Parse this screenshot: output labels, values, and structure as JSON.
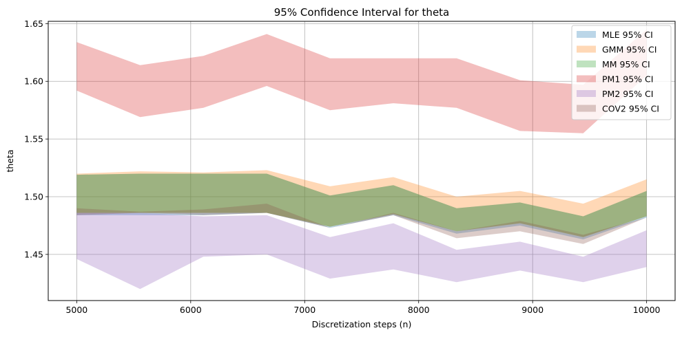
{
  "chart_data": {
    "type": "area",
    "title": "95% Confidence Interval for theta",
    "xlabel": "Discretization steps (n)",
    "ylabel": "theta",
    "xlim": [
      4750,
      10250
    ],
    "ylim": [
      1.41,
      1.652
    ],
    "xticks": [
      5000,
      6000,
      7000,
      8000,
      9000,
      10000
    ],
    "xtick_labels": [
      "5000",
      "6000",
      "7000",
      "8000",
      "9000",
      "10000"
    ],
    "yticks": [
      1.45,
      1.5,
      1.55,
      1.6,
      1.65
    ],
    "ytick_labels": [
      "1.45",
      "1.50",
      "1.55",
      "1.60",
      "1.65"
    ],
    "grid": true,
    "legend_position": "top-right",
    "x": [
      5000,
      5556,
      6111,
      6667,
      7222,
      7778,
      8333,
      8889,
      9444,
      10000
    ],
    "series": [
      {
        "name": "MLE 95% CI",
        "color": "#1f77b4",
        "lower": [
          1.484,
          1.484,
          1.484,
          1.486,
          1.473,
          1.484,
          1.468,
          1.475,
          1.463,
          1.482
        ],
        "upper": [
          1.519,
          1.52,
          1.52,
          1.52,
          1.501,
          1.51,
          1.49,
          1.495,
          1.483,
          1.505
        ]
      },
      {
        "name": "GMM 95% CI",
        "color": "#ff7f0e",
        "lower": [
          1.486,
          1.486,
          1.486,
          1.486,
          1.474,
          1.485,
          1.47,
          1.477,
          1.465,
          1.483
        ],
        "upper": [
          1.52,
          1.522,
          1.521,
          1.523,
          1.509,
          1.517,
          1.5,
          1.505,
          1.494,
          1.515
        ]
      },
      {
        "name": "MM 95% CI",
        "color": "#2ca02c",
        "lower": [
          1.486,
          1.486,
          1.486,
          1.486,
          1.474,
          1.485,
          1.47,
          1.477,
          1.465,
          1.483
        ],
        "upper": [
          1.519,
          1.52,
          1.52,
          1.52,
          1.501,
          1.51,
          1.49,
          1.495,
          1.483,
          1.505
        ]
      },
      {
        "name": "PM1 95% CI",
        "color": "#d62728",
        "lower": [
          1.592,
          1.569,
          1.577,
          1.596,
          1.575,
          1.581,
          1.577,
          1.557,
          1.555,
          1.605
        ],
        "upper": [
          1.634,
          1.614,
          1.622,
          1.641,
          1.62,
          1.62,
          1.62,
          1.601,
          1.597,
          1.645
        ]
      },
      {
        "name": "PM2 95% CI",
        "color": "#9467bd",
        "lower": [
          1.446,
          1.42,
          1.448,
          1.45,
          1.429,
          1.437,
          1.426,
          1.436,
          1.426,
          1.439
        ],
        "upper": [
          1.486,
          1.486,
          1.483,
          1.484,
          1.465,
          1.477,
          1.454,
          1.461,
          1.448,
          1.471
        ]
      },
      {
        "name": "COV2 95% CI",
        "color": "#8c564b",
        "lower": [
          1.484,
          1.486,
          1.484,
          1.486,
          1.473,
          1.484,
          1.464,
          1.47,
          1.459,
          1.482
        ],
        "upper": [
          1.49,
          1.487,
          1.489,
          1.494,
          1.473,
          1.486,
          1.47,
          1.479,
          1.467,
          1.482
        ]
      }
    ]
  }
}
